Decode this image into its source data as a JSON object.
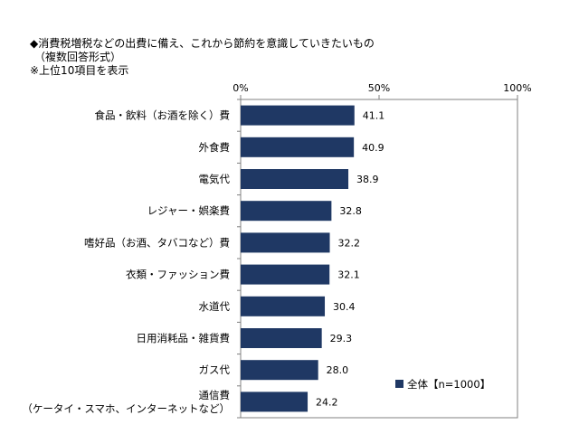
{
  "chart_data": {
    "type": "bar",
    "orientation": "horizontal",
    "title_lines": [
      "◆消費税増税などの出費に備え、これから節約を意識していきたいもの",
      "（複数回答形式）",
      "※上位10項目を表示"
    ],
    "categories": [
      [
        "食品・飲料（お酒を除く）費"
      ],
      [
        "外食費"
      ],
      [
        "電気代"
      ],
      [
        "レジャー・娯楽費"
      ],
      [
        "嗜好品（お酒、タバコなど）費"
      ],
      [
        "衣類・ファッション費"
      ],
      [
        "水道代"
      ],
      [
        "日用消耗品・雑貨費"
      ],
      [
        "ガス代"
      ],
      [
        "通信費",
        "（ケータイ・スマホ、インターネットなど）"
      ]
    ],
    "series": [
      {
        "name": "全体【n=1000】",
        "color": "#1f3864",
        "values": [
          41.1,
          40.9,
          38.9,
          32.8,
          32.2,
          32.1,
          30.4,
          29.3,
          28.0,
          24.2
        ],
        "value_labels": [
          "41.1",
          "40.9",
          "38.9",
          "32.8",
          "32.2",
          "32.1",
          "30.4",
          "29.3",
          "28.0",
          "24.2"
        ]
      }
    ],
    "xlim": [
      0,
      100
    ],
    "x_ticks": [
      0,
      50,
      100
    ],
    "x_tick_labels": [
      "0%",
      "50%",
      "100%"
    ],
    "x_axis_position": "top",
    "grid": false,
    "legend_position": "bottom-right"
  }
}
